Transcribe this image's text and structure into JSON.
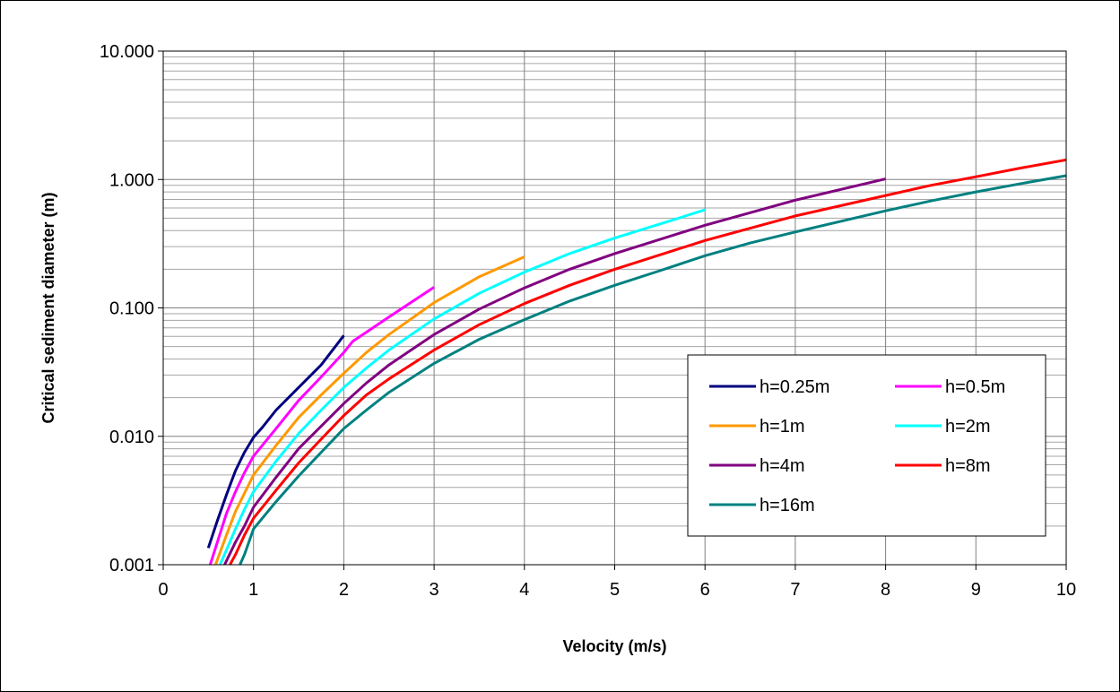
{
  "chart_data": {
    "type": "line",
    "title": "",
    "xlabel": "Velocity (m/s)",
    "ylabel": "Critical sediment diameter (m)",
    "xlim": [
      0,
      10
    ],
    "ylim": [
      0.001,
      10
    ],
    "y_scale": "log",
    "grid": true,
    "legend_position": "bottom-right",
    "x_ticks": [
      "0",
      "1",
      "2",
      "3",
      "4",
      "5",
      "6",
      "7",
      "8",
      "9",
      "10"
    ],
    "y_ticks": [
      "0.001",
      "0.010",
      "0.100",
      "1.000",
      "10.000"
    ],
    "series": [
      {
        "name": "h=0.25m",
        "color": "#000080",
        "points": [
          [
            0.5,
            0.00135
          ],
          [
            0.6,
            0.0022
          ],
          [
            0.7,
            0.0035
          ],
          [
            0.8,
            0.0054
          ],
          [
            0.9,
            0.0075
          ],
          [
            1.0,
            0.0098
          ],
          [
            1.1,
            0.0118
          ],
          [
            1.25,
            0.016
          ],
          [
            1.5,
            0.024
          ],
          [
            1.75,
            0.036
          ],
          [
            2.0,
            0.061
          ]
        ]
      },
      {
        "name": "h=0.5m",
        "color": "#ff00ff",
        "points": [
          [
            0.52,
            0.001
          ],
          [
            0.6,
            0.0015
          ],
          [
            0.7,
            0.0025
          ],
          [
            0.8,
            0.0037
          ],
          [
            0.9,
            0.0052
          ],
          [
            1.0,
            0.007
          ],
          [
            1.25,
            0.0115
          ],
          [
            1.5,
            0.019
          ],
          [
            1.75,
            0.029
          ],
          [
            2.0,
            0.045
          ],
          [
            2.1,
            0.055
          ],
          [
            2.5,
            0.085
          ],
          [
            3.0,
            0.145
          ]
        ]
      },
      {
        "name": "h=1m",
        "color": "#ff9900",
        "points": [
          [
            0.58,
            0.001
          ],
          [
            0.7,
            0.0017
          ],
          [
            0.8,
            0.0026
          ],
          [
            0.9,
            0.0036
          ],
          [
            1.0,
            0.005
          ],
          [
            1.25,
            0.0085
          ],
          [
            1.5,
            0.014
          ],
          [
            1.75,
            0.021
          ],
          [
            2.0,
            0.031
          ],
          [
            2.25,
            0.045
          ],
          [
            2.5,
            0.062
          ],
          [
            3.0,
            0.11
          ],
          [
            3.5,
            0.175
          ],
          [
            4.0,
            0.25
          ]
        ]
      },
      {
        "name": "h=2m",
        "color": "#00ffff",
        "points": [
          [
            0.63,
            0.001
          ],
          [
            0.7,
            0.0013
          ],
          [
            0.8,
            0.0019
          ],
          [
            0.9,
            0.0027
          ],
          [
            1.0,
            0.0037
          ],
          [
            1.25,
            0.0064
          ],
          [
            1.5,
            0.0105
          ],
          [
            1.75,
            0.016
          ],
          [
            2.0,
            0.024
          ],
          [
            2.25,
            0.034
          ],
          [
            2.5,
            0.047
          ],
          [
            3.0,
            0.082
          ],
          [
            3.5,
            0.13
          ],
          [
            4.0,
            0.19
          ],
          [
            4.5,
            0.265
          ],
          [
            5.0,
            0.35
          ],
          [
            5.5,
            0.45
          ],
          [
            6.0,
            0.58
          ]
        ]
      },
      {
        "name": "h=4m",
        "color": "#800080",
        "points": [
          [
            0.68,
            0.001
          ],
          [
            0.8,
            0.0015
          ],
          [
            0.9,
            0.002
          ],
          [
            1.0,
            0.0028
          ],
          [
            1.25,
            0.0048
          ],
          [
            1.5,
            0.008
          ],
          [
            1.75,
            0.012
          ],
          [
            2.0,
            0.018
          ],
          [
            2.25,
            0.026
          ],
          [
            2.5,
            0.036
          ],
          [
            3.0,
            0.062
          ],
          [
            3.5,
            0.098
          ],
          [
            4.0,
            0.143
          ],
          [
            4.5,
            0.2
          ],
          [
            5.0,
            0.265
          ],
          [
            6.0,
            0.44
          ],
          [
            7.0,
            0.69
          ],
          [
            8.0,
            1.01
          ]
        ]
      },
      {
        "name": "h=8m",
        "color": "#ff0000",
        "points": [
          [
            0.74,
            0.001
          ],
          [
            0.8,
            0.0012
          ],
          [
            0.9,
            0.0017
          ],
          [
            1.0,
            0.0023
          ],
          [
            1.25,
            0.0038
          ],
          [
            1.5,
            0.0062
          ],
          [
            1.75,
            0.0095
          ],
          [
            2.0,
            0.0145
          ],
          [
            2.25,
            0.021
          ],
          [
            2.5,
            0.028
          ],
          [
            3.0,
            0.047
          ],
          [
            3.5,
            0.074
          ],
          [
            4.0,
            0.108
          ],
          [
            4.5,
            0.15
          ],
          [
            5.0,
            0.2
          ],
          [
            6.0,
            0.335
          ],
          [
            7.0,
            0.52
          ],
          [
            8.0,
            0.75
          ],
          [
            8.5,
            0.9
          ],
          [
            9.0,
            1.05
          ],
          [
            9.5,
            1.23
          ],
          [
            10.0,
            1.42
          ]
        ]
      },
      {
        "name": "h=16m",
        "color": "#008080",
        "points": [
          [
            0.85,
            0.001
          ],
          [
            0.9,
            0.0012
          ],
          [
            1.0,
            0.0019
          ],
          [
            1.25,
            0.0031
          ],
          [
            1.5,
            0.0049
          ],
          [
            1.75,
            0.0075
          ],
          [
            2.0,
            0.0115
          ],
          [
            2.25,
            0.016
          ],
          [
            2.5,
            0.022
          ],
          [
            3.0,
            0.037
          ],
          [
            3.5,
            0.057
          ],
          [
            4.0,
            0.081
          ],
          [
            4.5,
            0.113
          ],
          [
            5.0,
            0.15
          ],
          [
            5.5,
            0.195
          ],
          [
            6.0,
            0.255
          ],
          [
            6.5,
            0.32
          ],
          [
            7.0,
            0.39
          ],
          [
            8.0,
            0.57
          ],
          [
            8.5,
            0.68
          ],
          [
            9.0,
            0.8
          ],
          [
            9.5,
            0.93
          ],
          [
            10.0,
            1.07
          ]
        ]
      }
    ]
  }
}
